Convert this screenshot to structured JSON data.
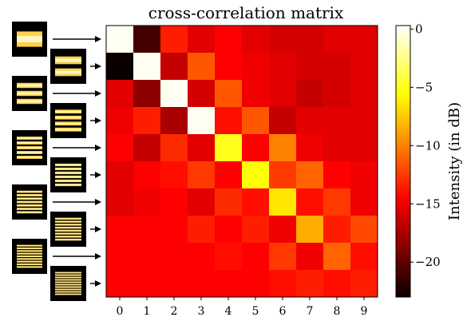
{
  "chart_data": {
    "type": "heatmap",
    "title": "cross-correlation matrix",
    "xlabel": "",
    "ylabel": "",
    "x_ticks": [
      "0",
      "1",
      "2",
      "3",
      "4",
      "5",
      "6",
      "7",
      "8",
      "9"
    ],
    "colorbar": {
      "label": "Intensity (in dB)",
      "range": [
        -23,
        0.3
      ],
      "ticks": [
        0,
        -5,
        -10,
        -15,
        -20
      ],
      "tick_labels": [
        "0",
        "−5",
        "−10",
        "−15",
        "−20"
      ],
      "colormap": "hot"
    },
    "values": [
      [
        0.0,
        -21.0,
        -13.5,
        -15.5,
        -14.5,
        -15.5,
        -16.0,
        -16.0,
        -15.5,
        -15.5
      ],
      [
        -23.0,
        0.0,
        -16.5,
        -11.5,
        -14.5,
        -15.0,
        -15.5,
        -16.0,
        -16.0,
        -15.5
      ],
      [
        -15.5,
        -18.5,
        0.0,
        -16.0,
        -11.5,
        -15.0,
        -15.5,
        -16.5,
        -16.0,
        -15.5
      ],
      [
        -15.0,
        -13.5,
        -17.5,
        0.0,
        -14.0,
        -11.5,
        -16.5,
        -15.5,
        -15.5,
        -15.5
      ],
      [
        -14.5,
        -16.5,
        -13.0,
        -15.5,
        -5.0,
        -14.5,
        -10.0,
        -15.0,
        -15.5,
        -15.5
      ],
      [
        -15.5,
        -14.5,
        -14.0,
        -12.5,
        -14.5,
        -5.5,
        -12.5,
        -11.0,
        -14.5,
        -15.0
      ],
      [
        -15.5,
        -15.0,
        -14.5,
        -15.5,
        -13.0,
        -14.0,
        -6.5,
        -14.0,
        -12.5,
        -15.0
      ],
      [
        -14.5,
        -14.5,
        -14.5,
        -13.5,
        -14.5,
        -13.5,
        -15.0,
        -8.5,
        -13.5,
        -12.0
      ],
      [
        -14.5,
        -14.5,
        -14.5,
        -14.5,
        -14.0,
        -14.5,
        -12.5,
        -15.0,
        -11.0,
        -14.0
      ],
      [
        -14.5,
        -14.5,
        -14.5,
        -14.5,
        -14.5,
        -14.5,
        -14.0,
        -13.5,
        -14.0,
        -13.5
      ]
    ],
    "side_thumbnails": {
      "count": 10,
      "stripes": [
        1,
        2,
        3,
        4,
        5,
        6,
        7,
        8,
        9,
        10
      ]
    }
  }
}
